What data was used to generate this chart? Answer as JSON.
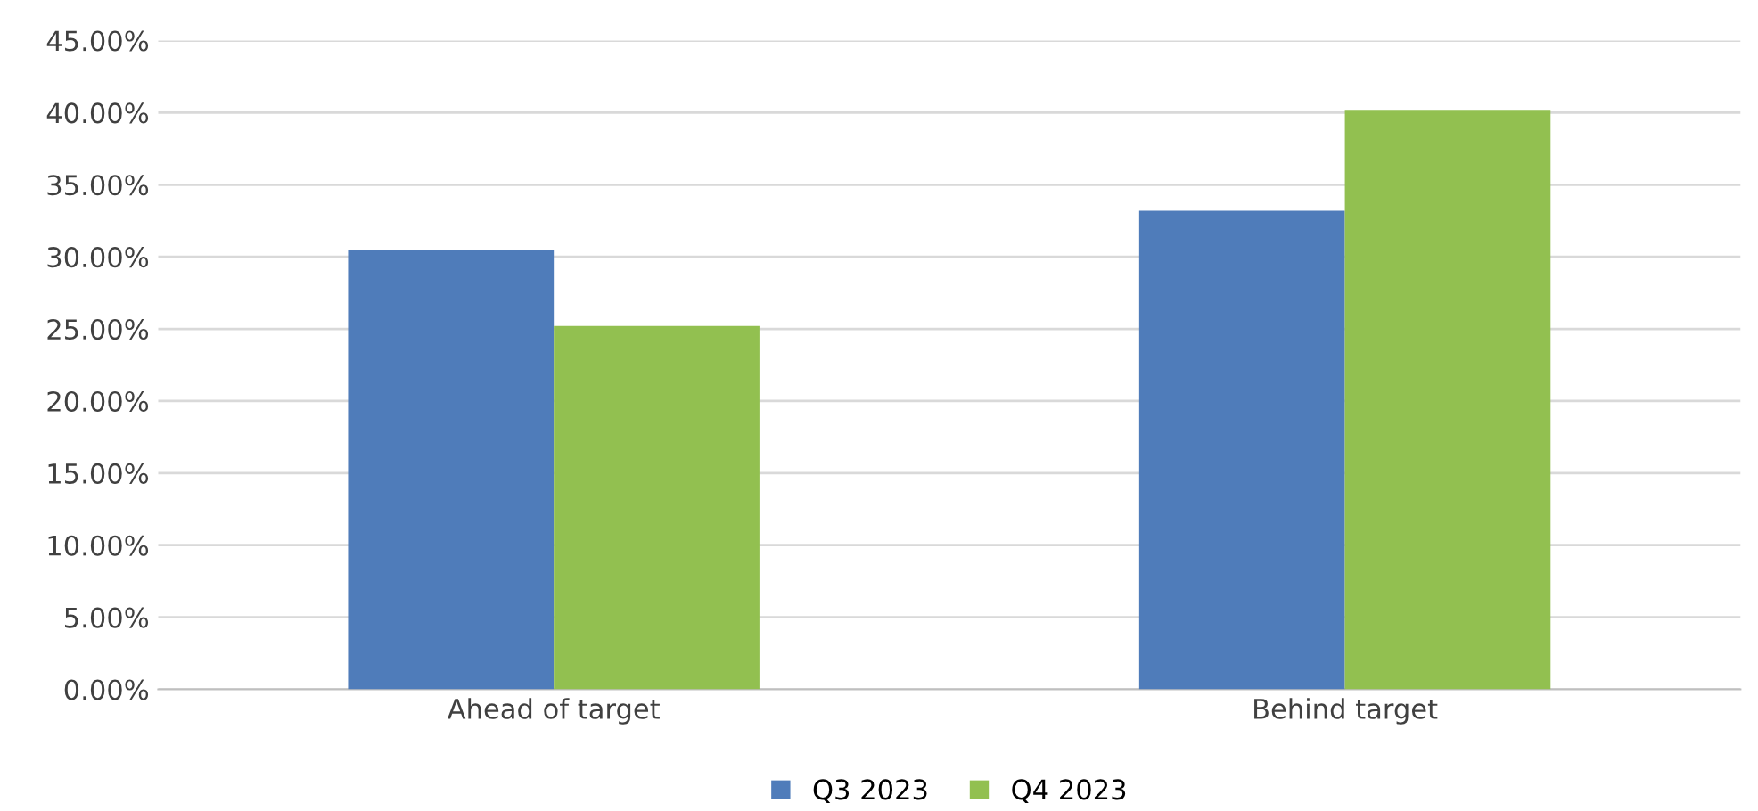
{
  "chart_data": {
    "type": "bar",
    "categories": [
      "Ahead of target",
      "Behind target"
    ],
    "series": [
      {
        "name": "Q3 2023",
        "color": "#4f7cba",
        "values": [
          30.5,
          33.2
        ]
      },
      {
        "name": "Q4 2023",
        "color": "#92c050",
        "values": [
          25.2,
          40.2
        ]
      }
    ],
    "ylim": [
      0,
      45
    ],
    "yticks": [
      {
        "value": 0,
        "label": "0.00%"
      },
      {
        "value": 5,
        "label": "5.00%"
      },
      {
        "value": 10,
        "label": "10.00%"
      },
      {
        "value": 15,
        "label": "15.00%"
      },
      {
        "value": 20,
        "label": "20.00%"
      },
      {
        "value": 25,
        "label": "25.00%"
      },
      {
        "value": 30,
        "label": "30.00%"
      },
      {
        "value": 35,
        "label": "35.00%"
      },
      {
        "value": 40,
        "label": "40.00%"
      },
      {
        "value": 45,
        "label": "45.00%"
      }
    ],
    "grid": "y",
    "legend": "bottom"
  }
}
